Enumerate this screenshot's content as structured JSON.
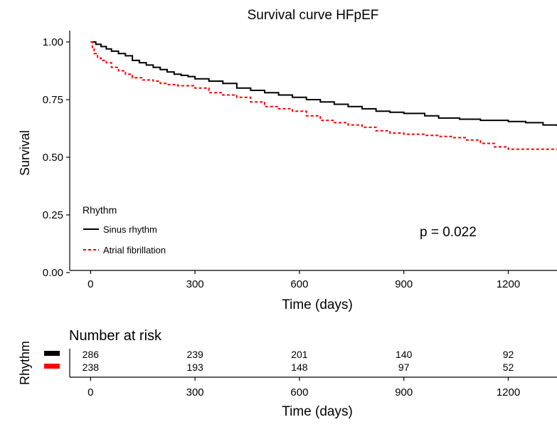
{
  "chart_data": [
    {
      "type": "line",
      "title": "Survival curve HFpEF",
      "xlabel": "Time (days)",
      "ylabel": "Survival",
      "xlim": [
        -60,
        1340
      ],
      "ylim": [
        0,
        1.04
      ],
      "xticks": [
        "0",
        "300",
        "600",
        "900",
        "1200"
      ],
      "xtick_values": [
        0,
        300,
        600,
        900,
        1200
      ],
      "yticks": [
        "0.00",
        "0.25",
        "0.50",
        "0.75",
        "1.00"
      ],
      "ytick_values": [
        0,
        0.25,
        0.5,
        0.75,
        1.0
      ],
      "grid": false,
      "legend": {
        "title": "Rhythm",
        "placement": "bottom-left",
        "entries": [
          "Sinus rhythm",
          "Atrial fibrillation"
        ]
      },
      "annotation": "p = 0.022",
      "series": [
        {
          "name": "Sinus rhythm",
          "color": "#000000",
          "style": "solid",
          "x": [
            0,
            15,
            30,
            45,
            60,
            80,
            100,
            120,
            140,
            160,
            180,
            200,
            220,
            240,
            260,
            280,
            300,
            340,
            380,
            420,
            460,
            500,
            540,
            580,
            620,
            660,
            700,
            740,
            780,
            820,
            860,
            900,
            960,
            1000,
            1060,
            1120,
            1200,
            1250,
            1300,
            1340
          ],
          "y": [
            1.0,
            0.99,
            0.98,
            0.97,
            0.96,
            0.95,
            0.94,
            0.92,
            0.91,
            0.9,
            0.89,
            0.88,
            0.87,
            0.86,
            0.855,
            0.85,
            0.84,
            0.83,
            0.82,
            0.8,
            0.79,
            0.78,
            0.77,
            0.76,
            0.75,
            0.74,
            0.73,
            0.72,
            0.71,
            0.7,
            0.695,
            0.69,
            0.68,
            0.67,
            0.665,
            0.66,
            0.655,
            0.65,
            0.64,
            0.635
          ]
        },
        {
          "name": "Atrial fibrillation",
          "color": "#ff0000",
          "style": "dashed",
          "x": [
            0,
            5,
            10,
            20,
            30,
            45,
            60,
            80,
            100,
            120,
            150,
            180,
            200,
            220,
            250,
            300,
            340,
            380,
            420,
            460,
            500,
            540,
            580,
            620,
            660,
            700,
            740,
            780,
            820,
            860,
            900,
            960,
            1000,
            1040,
            1080,
            1120,
            1160,
            1200,
            1250,
            1340
          ],
          "y": [
            1.0,
            0.97,
            0.95,
            0.93,
            0.92,
            0.91,
            0.89,
            0.875,
            0.86,
            0.845,
            0.835,
            0.83,
            0.82,
            0.815,
            0.81,
            0.8,
            0.78,
            0.77,
            0.76,
            0.74,
            0.72,
            0.71,
            0.7,
            0.68,
            0.66,
            0.65,
            0.64,
            0.63,
            0.615,
            0.605,
            0.6,
            0.595,
            0.59,
            0.585,
            0.575,
            0.56,
            0.545,
            0.535,
            0.535,
            0.535
          ]
        }
      ]
    },
    {
      "type": "table",
      "title": "Number at risk",
      "xlabel": "Time (days)",
      "ylabel": "Rhythm",
      "xlim": [
        -60,
        1340
      ],
      "xticks": [
        "0",
        "300",
        "600",
        "900",
        "1200"
      ],
      "xtick_values": [
        0,
        300,
        600,
        900,
        1200
      ],
      "rows": [
        {
          "color": "#000000",
          "values": [
            "286",
            "239",
            "201",
            "140",
            "92"
          ]
        },
        {
          "color": "#ff0000",
          "values": [
            "238",
            "193",
            "148",
            "97",
            "52"
          ]
        }
      ]
    }
  ]
}
